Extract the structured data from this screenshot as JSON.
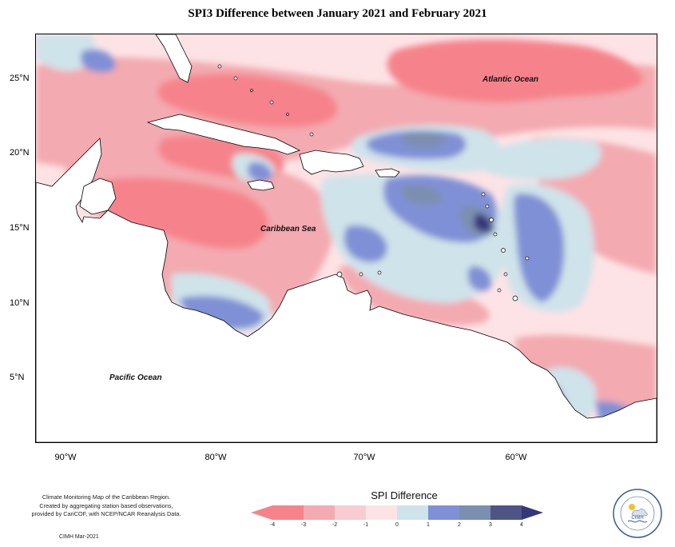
{
  "title": "SPI3 Difference between January 2021 and February 2021",
  "map": {
    "longitude_ticks": [
      "90°W",
      "80°W",
      "70°W",
      "60°W"
    ],
    "latitude_ticks": [
      "25°N",
      "20°N",
      "15°N",
      "10°N",
      "5°N"
    ],
    "labels": {
      "atlantic": "Atlantic Ocean",
      "caribbean": "Caribbean Sea",
      "pacific": "Pacific Ocean"
    }
  },
  "legend": {
    "title": "SPI Difference",
    "ticks": [
      "-4",
      "-3",
      "-2",
      "-1",
      "0",
      "1",
      "2",
      "3",
      "4"
    ],
    "colors": [
      "#f6838b",
      "#f3aab0",
      "#f7cdd1",
      "#fde3e5",
      "#cfe3ea",
      "#8090d6",
      "#7b8fb0",
      "#4e5586",
      "#34377a"
    ]
  },
  "credits": {
    "line1": "Climate Monitoring Map of the Caribbean Region.",
    "line2": "Created by aggregating station based observations,",
    "line3": "provided by CariCOF, with NCEP/NCAR Reanalysis Data.",
    "date": "CIMH Mar-2021"
  },
  "logo": {
    "name": "CIMH"
  }
}
